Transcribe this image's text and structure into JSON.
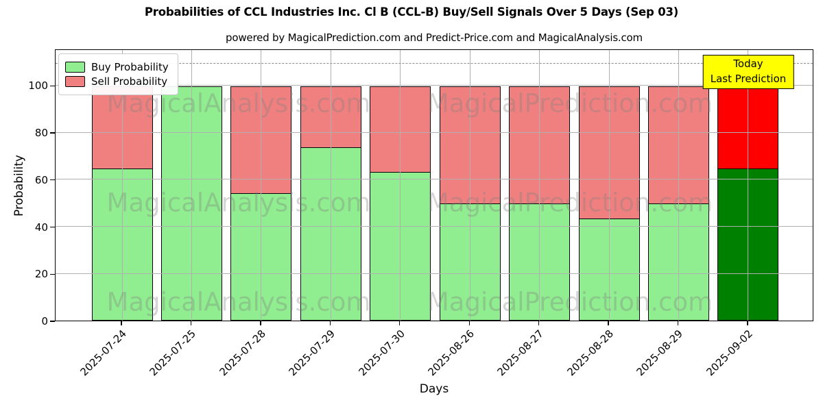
{
  "header": {
    "title": "Probabilities of CCL Industries Inc. Cl B (CCL-B) Buy/Sell Signals Over 5 Days (Sep 03)",
    "subtitle": "powered by MagicalPrediction.com and Predict-Price.com and MagicalAnalysis.com"
  },
  "chart_data": {
    "type": "bar",
    "stacked": true,
    "title": "Probabilities of CCL Industries Inc. Cl B (CCL-B) Buy/Sell Signals Over 5 Days (Sep 03)",
    "subtitle": "powered by MagicalPrediction.com and Predict-Price.com and MagicalAnalysis.com",
    "xlabel": "Days",
    "ylabel": "Probability",
    "categories": [
      "2025-07-24",
      "2025-07-25",
      "2025-07-28",
      "2025-07-29",
      "2025-07-30",
      "2025-08-26",
      "2025-08-27",
      "2025-08-28",
      "2025-08-29",
      "2025-09-02"
    ],
    "series": [
      {
        "name": "Buy Probability",
        "color": "#90ee90",
        "values": [
          65,
          100,
          54.5,
          74,
          63.5,
          50,
          50,
          43.5,
          50,
          65
        ]
      },
      {
        "name": "Sell Probability",
        "color": "#f08080",
        "values": [
          35,
          0,
          45.5,
          26,
          36.5,
          50,
          50,
          56.5,
          50,
          35
        ]
      }
    ],
    "today_index": 9,
    "today_colors": {
      "buy": "#008000",
      "sell": "#ff0000"
    },
    "yticks": [
      0,
      20,
      40,
      60,
      80,
      100
    ],
    "ylim": [
      0,
      115.5
    ],
    "threshold_line": 110,
    "grid": true,
    "legend_position": "top-left",
    "annotation": {
      "line1": "Today",
      "line2": "Last Prediction",
      "bg": "#ffff00"
    },
    "watermarks": {
      "left_text": "MagicalAnalysis.com",
      "right_text": "MagicalPrediction.com"
    },
    "colors": {
      "grid": "#b0b0b0",
      "bar_edge": "#000000",
      "threshold": "#8c8c8c"
    }
  }
}
